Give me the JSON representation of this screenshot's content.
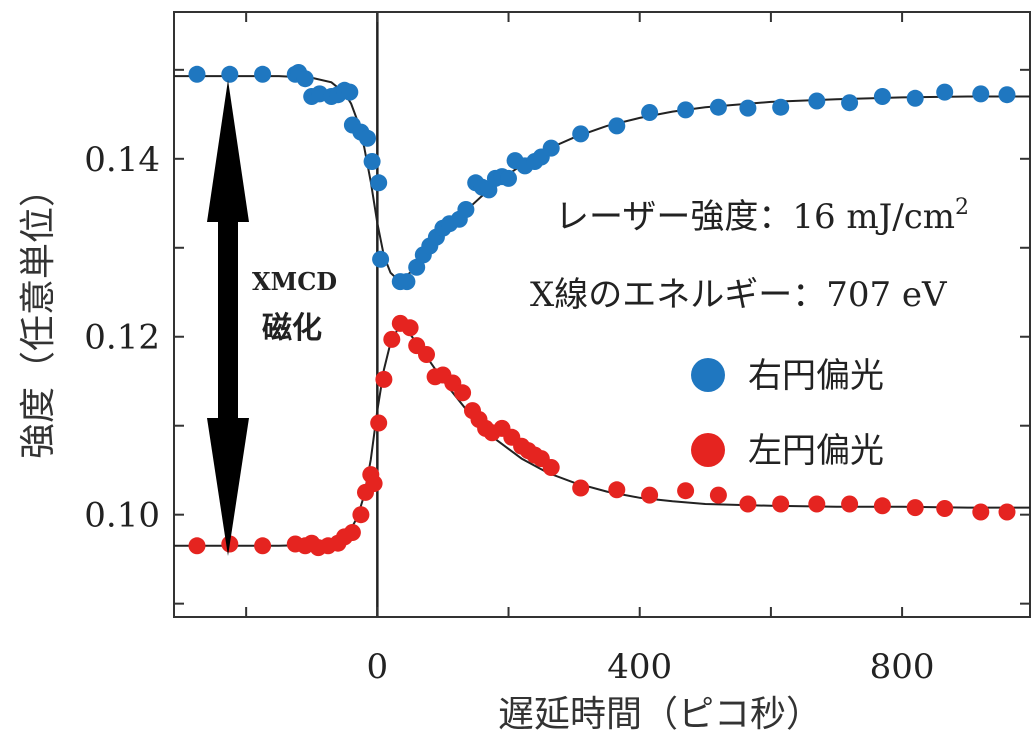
{
  "chart_data": {
    "type": "scatter",
    "xlabel": "遅延時間（ピコ秒）",
    "ylabel": "強度（任意単位）",
    "xlim": [
      -310,
      995
    ],
    "ylim": [
      0.0885,
      0.1565
    ],
    "xticks": [
      0,
      400,
      800
    ],
    "xtick_labels": [
      "0",
      "400",
      "800"
    ],
    "yticks": [
      0.1,
      0.12,
      0.14
    ],
    "ytick_labels": [
      "0.10",
      "0.12",
      "0.14"
    ],
    "grid": false,
    "vertical_line_x": 0,
    "annotations": {
      "laser": "レーザー強度：16 mJ/cm",
      "laser_sup": "2",
      "xray": "X線のエネルギー：707 eV",
      "xmcd_line1": "XMCD",
      "xmcd_line2": "磁化"
    },
    "legend_position": "right-middle",
    "series": [
      {
        "name": "右円偏光",
        "color": "#1f77c0",
        "points": [
          [
            -275,
            0.1495
          ],
          [
            -225,
            0.1495
          ],
          [
            -175,
            0.1495
          ],
          [
            -125,
            0.1495
          ],
          [
            -120,
            0.1497
          ],
          [
            -110,
            0.149
          ],
          [
            -100,
            0.147
          ],
          [
            -88,
            0.1473
          ],
          [
            -70,
            0.147
          ],
          [
            -60,
            0.1472
          ],
          [
            -50,
            0.1477
          ],
          [
            -42,
            0.1475
          ],
          [
            -38,
            0.1438
          ],
          [
            -25,
            0.143
          ],
          [
            -15,
            0.1423
          ],
          [
            -8,
            0.1397
          ],
          [
            2,
            0.1373
          ],
          [
            5,
            0.1287
          ],
          [
            35,
            0.1262
          ],
          [
            45,
            0.1262
          ],
          [
            60,
            0.1278
          ],
          [
            70,
            0.1292
          ],
          [
            80,
            0.1302
          ],
          [
            90,
            0.1312
          ],
          [
            100,
            0.1322
          ],
          [
            110,
            0.1327
          ],
          [
            125,
            0.1332
          ],
          [
            135,
            0.1343
          ],
          [
            150,
            0.1373
          ],
          [
            160,
            0.1368
          ],
          [
            170,
            0.1365
          ],
          [
            180,
            0.1378
          ],
          [
            190,
            0.138
          ],
          [
            200,
            0.1378
          ],
          [
            210,
            0.1398
          ],
          [
            225,
            0.1392
          ],
          [
            240,
            0.1397
          ],
          [
            250,
            0.1402
          ],
          [
            265,
            0.1412
          ],
          [
            310,
            0.1428
          ],
          [
            365,
            0.1437
          ],
          [
            415,
            0.1452
          ],
          [
            470,
            0.1455
          ],
          [
            520,
            0.1458
          ],
          [
            565,
            0.1457
          ],
          [
            615,
            0.1458
          ],
          [
            670,
            0.1465
          ],
          [
            720,
            0.1463
          ],
          [
            770,
            0.147
          ],
          [
            820,
            0.1468
          ],
          [
            865,
            0.1475
          ],
          [
            920,
            0.1473
          ],
          [
            960,
            0.1472
          ]
        ]
      },
      {
        "name": "左円偏光",
        "color": "#e52420",
        "points": [
          [
            -275,
            0.0965
          ],
          [
            -225,
            0.0967
          ],
          [
            -175,
            0.0965
          ],
          [
            -125,
            0.0967
          ],
          [
            -110,
            0.0965
          ],
          [
            -100,
            0.0968
          ],
          [
            -90,
            0.0963
          ],
          [
            -75,
            0.0965
          ],
          [
            -60,
            0.0968
          ],
          [
            -50,
            0.0975
          ],
          [
            -38,
            0.098
          ],
          [
            -25,
            0.1
          ],
          [
            -18,
            0.1025
          ],
          [
            -10,
            0.1045
          ],
          [
            -5,
            0.1035
          ],
          [
            2,
            0.1103
          ],
          [
            10,
            0.1152
          ],
          [
            22,
            0.1197
          ],
          [
            35,
            0.1215
          ],
          [
            50,
            0.121
          ],
          [
            60,
            0.119
          ],
          [
            75,
            0.118
          ],
          [
            88,
            0.1155
          ],
          [
            100,
            0.1157
          ],
          [
            115,
            0.1148
          ],
          [
            130,
            0.1137
          ],
          [
            145,
            0.1117
          ],
          [
            155,
            0.1107
          ],
          [
            165,
            0.1097
          ],
          [
            175,
            0.1092
          ],
          [
            190,
            0.1097
          ],
          [
            205,
            0.1087
          ],
          [
            220,
            0.1077
          ],
          [
            230,
            0.1072
          ],
          [
            240,
            0.1067
          ],
          [
            250,
            0.1063
          ],
          [
            265,
            0.1053
          ],
          [
            310,
            0.103
          ],
          [
            365,
            0.1028
          ],
          [
            415,
            0.1022
          ],
          [
            470,
            0.1027
          ],
          [
            520,
            0.1022
          ],
          [
            565,
            0.1012
          ],
          [
            615,
            0.1012
          ],
          [
            670,
            0.1012
          ],
          [
            720,
            0.1012
          ],
          [
            770,
            0.101
          ],
          [
            820,
            0.1008
          ],
          [
            865,
            0.1007
          ],
          [
            920,
            0.1003
          ],
          [
            960,
            0.1003
          ]
        ]
      }
    ],
    "fit_lines": [
      {
        "color": "#222222",
        "points": [
          [
            -310,
            0.1493
          ],
          [
            -150,
            0.1493
          ],
          [
            -100,
            0.1491
          ],
          [
            -70,
            0.1486
          ],
          [
            -50,
            0.1474
          ],
          [
            -40,
            0.1462
          ],
          [
            -30,
            0.1442
          ],
          [
            -20,
            0.1413
          ],
          [
            -10,
            0.1374
          ],
          [
            0,
            0.1328
          ],
          [
            10,
            0.1291
          ],
          [
            20,
            0.1272
          ],
          [
            30,
            0.1265
          ],
          [
            40,
            0.1266
          ],
          [
            50,
            0.1272
          ],
          [
            70,
            0.1289
          ],
          [
            100,
            0.1314
          ],
          [
            140,
            0.1345
          ],
          [
            180,
            0.1372
          ],
          [
            220,
            0.1393
          ],
          [
            260,
            0.1411
          ],
          [
            300,
            0.1424
          ],
          [
            350,
            0.1437
          ],
          [
            400,
            0.1446
          ],
          [
            450,
            0.1453
          ],
          [
            500,
            0.1458
          ],
          [
            600,
            0.1464
          ],
          [
            700,
            0.1467
          ],
          [
            800,
            0.1469
          ],
          [
            900,
            0.147
          ],
          [
            995,
            0.147
          ]
        ]
      },
      {
        "color": "#222222",
        "points": [
          [
            -310,
            0.0965
          ],
          [
            -150,
            0.0965
          ],
          [
            -100,
            0.0966
          ],
          [
            -70,
            0.0969
          ],
          [
            -50,
            0.0976
          ],
          [
            -40,
            0.0984
          ],
          [
            -30,
            0.0998
          ],
          [
            -20,
            0.1022
          ],
          [
            -10,
            0.1062
          ],
          [
            0,
            0.1117
          ],
          [
            10,
            0.1163
          ],
          [
            20,
            0.1193
          ],
          [
            30,
            0.1207
          ],
          [
            40,
            0.1208
          ],
          [
            50,
            0.1203
          ],
          [
            70,
            0.1183
          ],
          [
            100,
            0.1151
          ],
          [
            140,
            0.1114
          ],
          [
            180,
            0.1085
          ],
          [
            220,
            0.1063
          ],
          [
            260,
            0.1047
          ],
          [
            300,
            0.1036
          ],
          [
            350,
            0.1026
          ],
          [
            400,
            0.1019
          ],
          [
            450,
            0.1015
          ],
          [
            500,
            0.1012
          ],
          [
            600,
            0.101
          ],
          [
            700,
            0.1009
          ],
          [
            800,
            0.1009
          ],
          [
            900,
            0.1008
          ],
          [
            995,
            0.1008
          ]
        ]
      }
    ]
  }
}
